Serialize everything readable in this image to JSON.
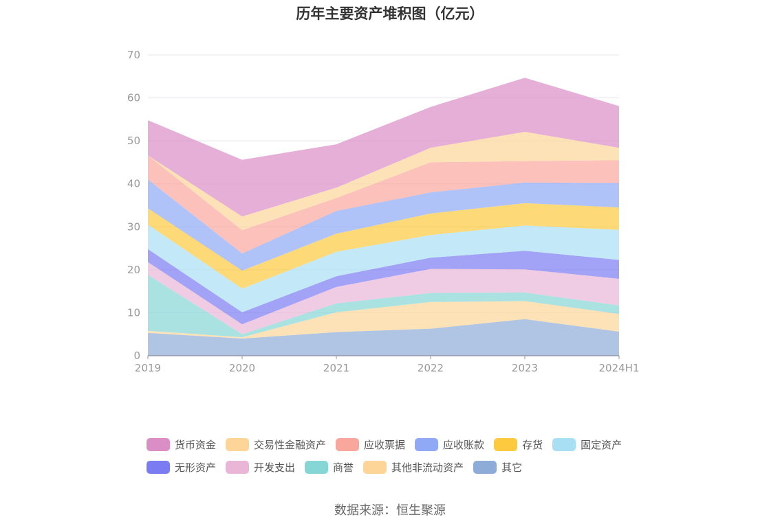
{
  "chart_data": {
    "type": "area",
    "stacked": true,
    "title": "历年主要资产堆积图（亿元）",
    "x": [
      "2019",
      "2020",
      "2021",
      "2022",
      "2023",
      "2024H1"
    ],
    "ylim": [
      0,
      70
    ],
    "yticks": [
      0,
      10,
      20,
      30,
      40,
      50,
      60,
      70
    ],
    "grid": true,
    "legend_position": "bottom",
    "series": [
      {
        "name": "其它",
        "color": "#8eacd8",
        "values": [
          5.3,
          4.0,
          5.5,
          6.3,
          8.5,
          5.6
        ]
      },
      {
        "name": "其他非流动资产",
        "color": "#fdd599",
        "values": [
          0.5,
          0.3,
          4.6,
          6.2,
          4.2,
          4.1
        ]
      },
      {
        "name": "商誉",
        "color": "#86d6d6",
        "values": [
          13.0,
          0.7,
          2.1,
          2.1,
          2.0,
          2.0
        ]
      },
      {
        "name": "开发支出",
        "color": "#e9b6d8",
        "values": [
          3.0,
          2.3,
          3.8,
          5.6,
          5.4,
          6.2
        ]
      },
      {
        "name": "无形资产",
        "color": "#7b7bf2",
        "values": [
          3.0,
          2.8,
          2.5,
          2.6,
          4.3,
          4.4
        ]
      },
      {
        "name": "固定资产",
        "color": "#a9dff5",
        "values": [
          5.7,
          5.5,
          5.7,
          5.3,
          5.9,
          7.0
        ]
      },
      {
        "name": "存货",
        "color": "#fdc93e",
        "values": [
          3.8,
          4.2,
          4.2,
          5.0,
          5.2,
          5.2
        ]
      },
      {
        "name": "应收账款",
        "color": "#8fa9f6",
        "values": [
          6.7,
          4.0,
          5.3,
          4.9,
          4.8,
          5.7
        ]
      },
      {
        "name": "应收票据",
        "color": "#f9a79d",
        "values": [
          5.6,
          5.4,
          3.0,
          7.0,
          5.0,
          5.3
        ]
      },
      {
        "name": "交易性金融资产",
        "color": "#fdd599",
        "values": [
          0.0,
          3.2,
          2.4,
          3.4,
          6.8,
          2.9
        ]
      },
      {
        "name": "货币资金",
        "color": "#db8dc6",
        "values": [
          8.2,
          13.2,
          10.1,
          9.5,
          12.6,
          9.7
        ]
      }
    ],
    "legend_order": [
      "货币资金",
      "交易性金融资产",
      "应收票据",
      "应收账款",
      "存货",
      "固定资产",
      "无形资产",
      "开发支出",
      "商誉",
      "其他非流动资产",
      "其它"
    ]
  },
  "source": "数据来源：恒生聚源"
}
